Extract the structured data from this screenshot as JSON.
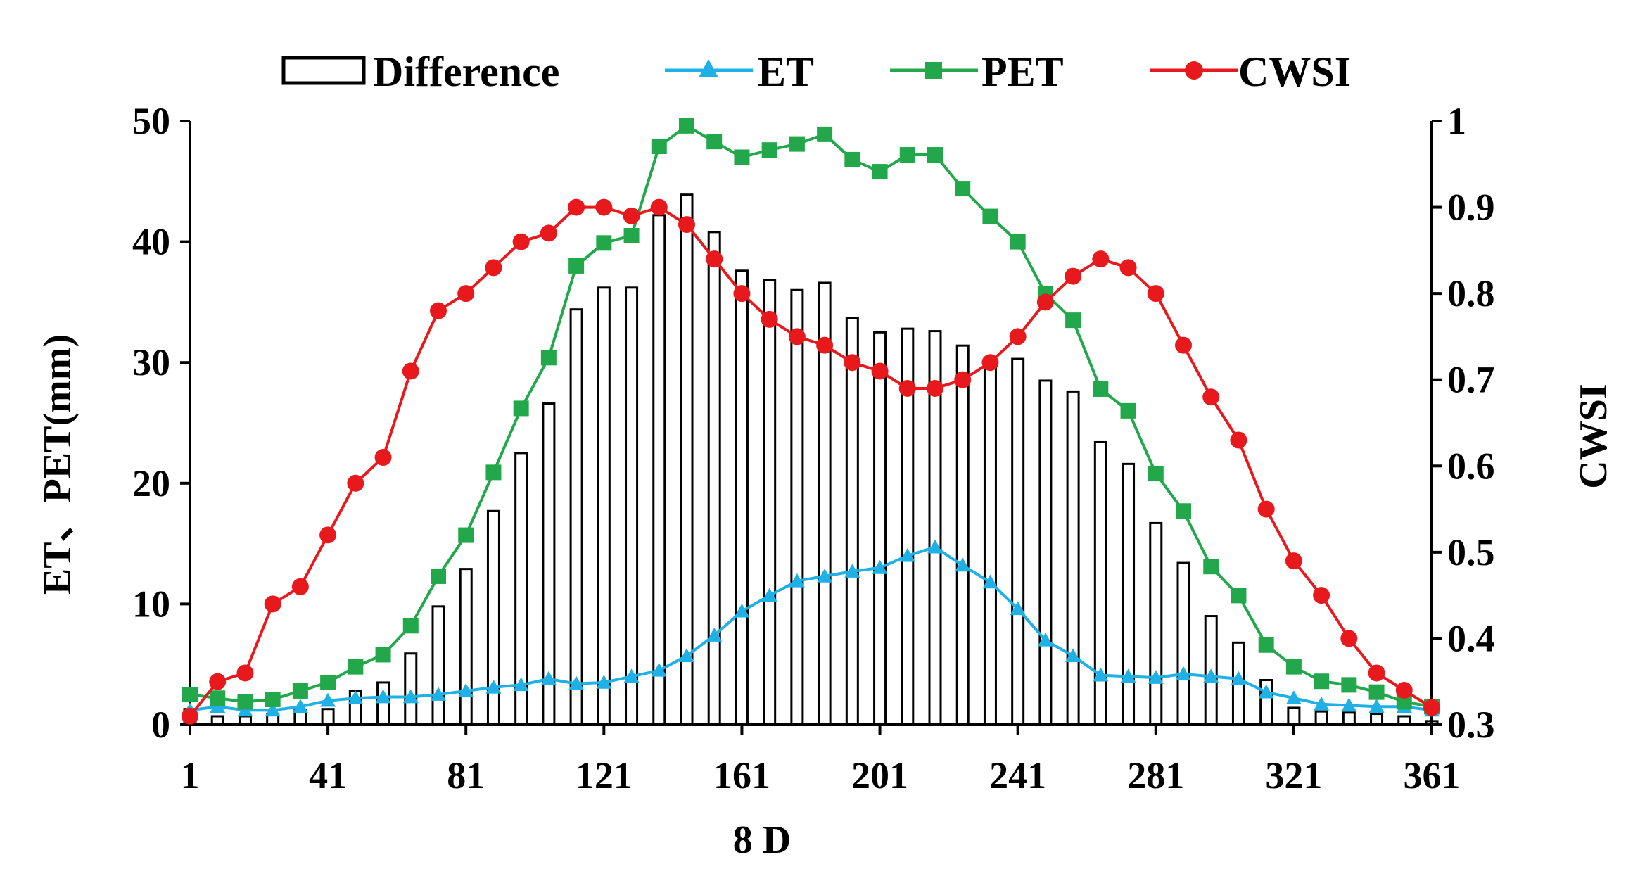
{
  "chart_data": {
    "type": "bar+line",
    "title": "",
    "xlabel": "8 D",
    "ylabel": "ET、PET(mm)",
    "y2label": "CWSI",
    "xlim": [
      1,
      361
    ],
    "ylim": [
      0,
      50
    ],
    "y2lim": [
      0.3,
      1.0
    ],
    "xticks": [
      1,
      41,
      81,
      121,
      161,
      201,
      241,
      281,
      321,
      361
    ],
    "yticks": [
      0,
      10,
      20,
      30,
      40,
      50
    ],
    "y2ticks": [
      0.3,
      0.4,
      0.5,
      0.6,
      0.7,
      0.8,
      0.9,
      1.0
    ],
    "legend_position": "top",
    "x": [
      1,
      9,
      17,
      25,
      33,
      41,
      49,
      57,
      65,
      73,
      81,
      89,
      97,
      105,
      113,
      121,
      129,
      137,
      145,
      153,
      161,
      169,
      177,
      185,
      193,
      201,
      209,
      217,
      225,
      233,
      241,
      249,
      257,
      265,
      273,
      281,
      289,
      297,
      305,
      313,
      321,
      329,
      337,
      345,
      353,
      361
    ],
    "series": [
      {
        "name": "Difference",
        "kind": "bar",
        "axis": "left",
        "color": "#000000",
        "values": [
          1.3,
          0.7,
          0.7,
          0.9,
          1.2,
          1.3,
          2.8,
          3.5,
          5.9,
          9.8,
          12.9,
          17.7,
          22.5,
          26.6,
          34.4,
          36.2,
          36.2,
          42.2,
          43.9,
          40.8,
          37.6,
          36.8,
          36.0,
          36.6,
          33.7,
          32.5,
          32.8,
          32.6,
          31.4,
          29.5,
          30.3,
          28.5,
          27.6,
          23.4,
          21.6,
          16.7,
          13.4,
          9.0,
          6.8,
          3.7,
          1.4,
          1.1,
          1.0,
          0.9,
          0.7,
          0.3
        ]
      },
      {
        "name": "ET",
        "kind": "line",
        "axis": "left",
        "color": "#1fb0e6",
        "marker": "triangle",
        "values": [
          1.2,
          1.5,
          1.2,
          1.2,
          1.5,
          2.0,
          2.2,
          2.3,
          2.3,
          2.5,
          2.8,
          3.1,
          3.3,
          3.8,
          3.4,
          3.5,
          4.0,
          4.5,
          5.7,
          7.4,
          9.4,
          10.7,
          11.9,
          12.3,
          12.7,
          13.0,
          14.0,
          14.7,
          13.2,
          11.8,
          9.6,
          7.0,
          5.7,
          4.1,
          4.0,
          3.9,
          4.2,
          4.0,
          3.8,
          2.7,
          2.2,
          1.7,
          1.6,
          1.5,
          1.5,
          1.2
        ]
      },
      {
        "name": "PET",
        "kind": "line",
        "axis": "left",
        "color": "#22a84a",
        "marker": "square",
        "values": [
          2.5,
          2.2,
          1.9,
          2.1,
          2.8,
          3.5,
          4.8,
          5.8,
          8.2,
          12.3,
          15.7,
          20.9,
          26.2,
          30.4,
          38.0,
          39.9,
          40.5,
          47.9,
          49.6,
          48.3,
          47.0,
          47.6,
          48.1,
          48.9,
          46.8,
          45.8,
          47.2,
          47.2,
          44.4,
          42.1,
          40.0,
          35.7,
          33.5,
          27.8,
          26.0,
          20.8,
          17.7,
          13.1,
          10.7,
          6.6,
          4.8,
          3.6,
          3.3,
          2.7,
          1.9,
          1.5
        ]
      },
      {
        "name": "CWSI",
        "kind": "line",
        "axis": "right",
        "color": "#e8191c",
        "marker": "circle",
        "values": [
          0.31,
          0.35,
          0.36,
          0.44,
          0.46,
          0.52,
          0.58,
          0.61,
          0.71,
          0.78,
          0.8,
          0.83,
          0.86,
          0.87,
          0.9,
          0.9,
          0.89,
          0.9,
          0.88,
          0.84,
          0.8,
          0.77,
          0.75,
          0.74,
          0.72,
          0.71,
          0.69,
          0.69,
          0.7,
          0.72,
          0.75,
          0.79,
          0.82,
          0.84,
          0.83,
          0.8,
          0.74,
          0.68,
          0.63,
          0.55,
          0.49,
          0.45,
          0.4,
          0.36,
          0.34,
          0.32
        ]
      }
    ]
  }
}
